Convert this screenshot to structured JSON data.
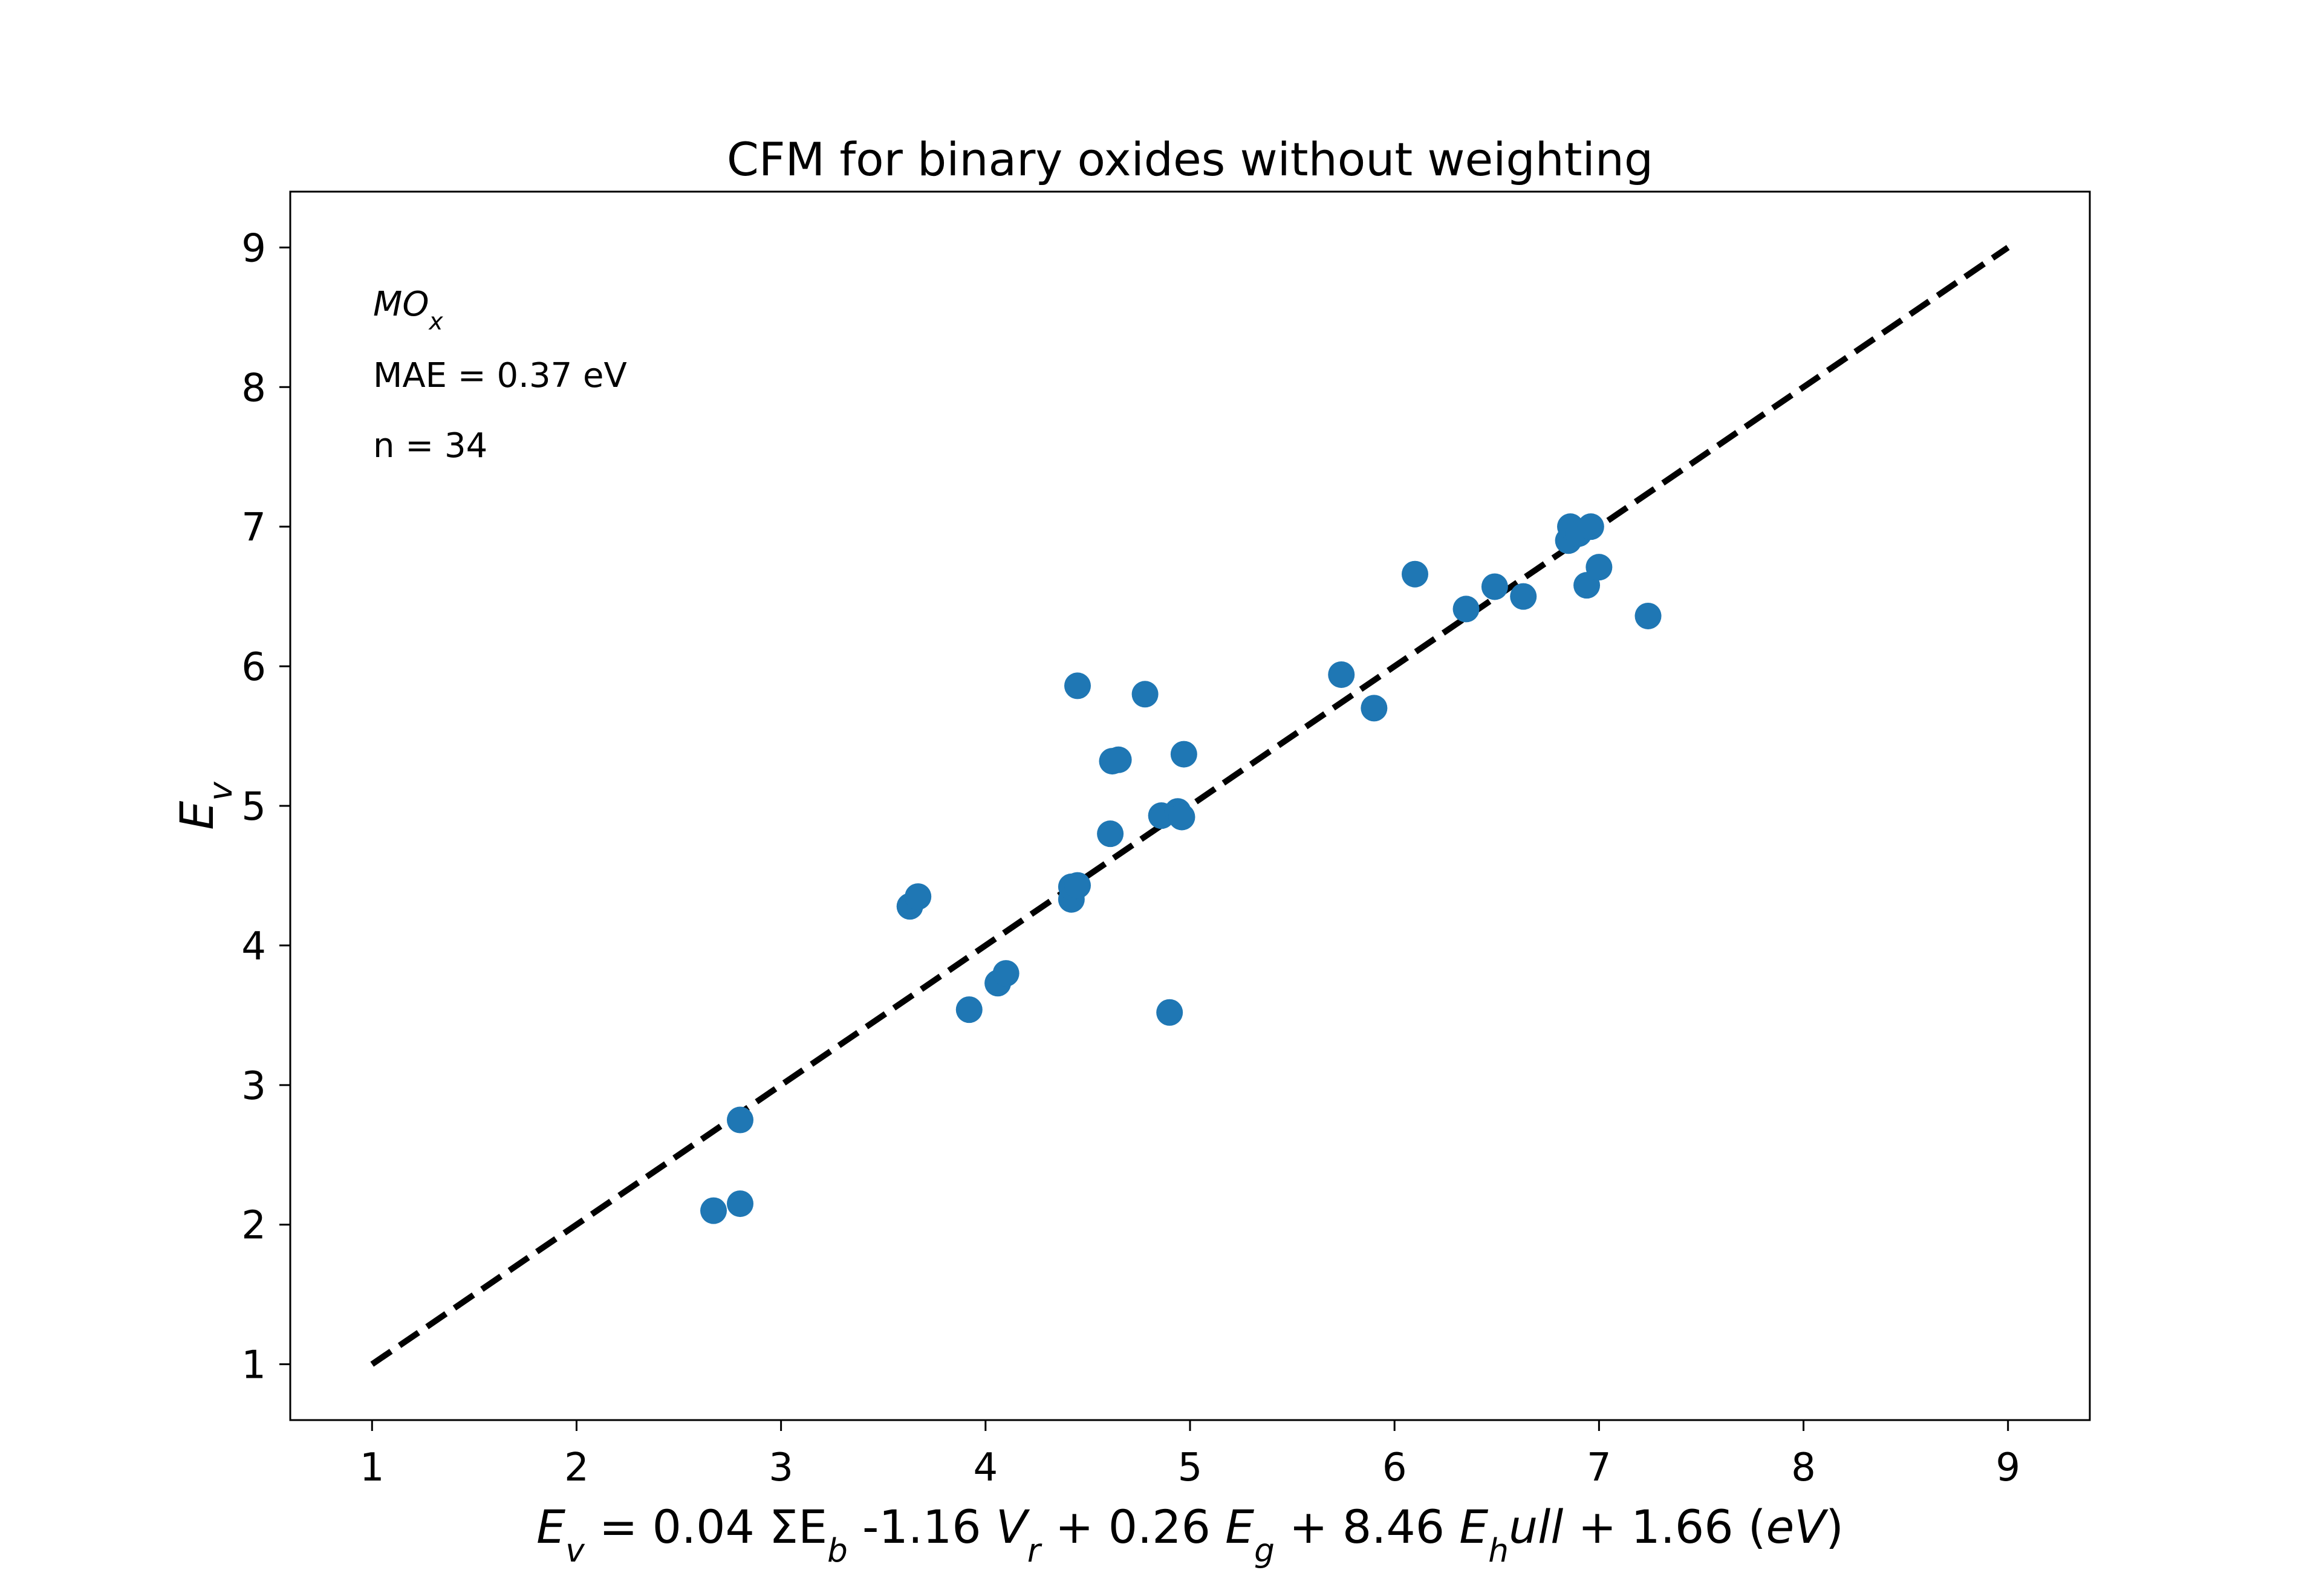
{
  "chart_data": {
    "type": "scatter",
    "title": "CFM for binary oxides without weighting",
    "xlabel_parts": [
      {
        "t": "E",
        "i": true
      },
      {
        "t": "v",
        "i": true,
        "sub": true
      },
      {
        "t": " = 0.04 ΣE"
      },
      {
        "t": "b",
        "i": true,
        "sub": true
      },
      {
        "t": " -1.16 "
      },
      {
        "t": "V",
        "i": true
      },
      {
        "t": "r",
        "i": true,
        "sub": true
      },
      {
        "t": " + 0.26 "
      },
      {
        "t": "E",
        "i": true
      },
      {
        "t": "g",
        "i": true,
        "sub": true
      },
      {
        "t": " + 8.46 "
      },
      {
        "t": "E",
        "i": true
      },
      {
        "t": "h",
        "i": true,
        "sub": true
      },
      {
        "t": "ull",
        "i": true
      },
      {
        "t": " + 1.66 ("
      },
      {
        "t": "eV",
        "i": true
      },
      {
        "t": ")"
      }
    ],
    "ylabel_parts": [
      {
        "t": "E",
        "i": true
      },
      {
        "t": "v",
        "i": true,
        "sub": true
      }
    ],
    "annotations": {
      "formula_parts": [
        {
          "t": "MO",
          "i": true
        },
        {
          "t": "x",
          "i": true,
          "sub": true
        }
      ],
      "mae": "MAE = 0.37 eV",
      "n": "n = 34"
    },
    "xlim": [
      0.6,
      9.4
    ],
    "ylim": [
      0.6,
      9.4
    ],
    "xticks": [
      1,
      2,
      3,
      4,
      5,
      6,
      7,
      8,
      9
    ],
    "yticks": [
      1,
      2,
      3,
      4,
      5,
      6,
      7,
      8,
      9
    ],
    "grid": false,
    "reference_line": {
      "x": [
        1,
        9
      ],
      "y": [
        1,
        9
      ],
      "style": "dashed",
      "color": "#000000"
    },
    "marker_color": "#1f77b4",
    "points": [
      [
        2.67,
        2.1
      ],
      [
        2.8,
        2.15
      ],
      [
        2.8,
        2.75
      ],
      [
        3.63,
        4.28
      ],
      [
        3.67,
        4.35
      ],
      [
        3.92,
        3.54
      ],
      [
        4.06,
        3.73
      ],
      [
        4.1,
        3.8
      ],
      [
        4.42,
        4.33
      ],
      [
        4.42,
        4.42
      ],
      [
        4.45,
        4.43
      ],
      [
        4.45,
        5.86
      ],
      [
        4.61,
        4.8
      ],
      [
        4.62,
        5.32
      ],
      [
        4.65,
        5.33
      ],
      [
        4.78,
        5.8
      ],
      [
        4.86,
        4.93
      ],
      [
        4.9,
        3.52
      ],
      [
        4.94,
        4.96
      ],
      [
        4.96,
        4.92
      ],
      [
        4.97,
        5.37
      ],
      [
        5.74,
        5.94
      ],
      [
        5.9,
        5.7
      ],
      [
        6.1,
        6.66
      ],
      [
        6.35,
        6.41
      ],
      [
        6.49,
        6.57
      ],
      [
        6.63,
        6.5
      ],
      [
        6.85,
        6.9
      ],
      [
        6.86,
        7.0
      ],
      [
        6.9,
        6.95
      ],
      [
        6.94,
        6.58
      ],
      [
        6.96,
        7.0
      ],
      [
        7.0,
        6.71
      ],
      [
        7.24,
        6.36
      ]
    ]
  }
}
